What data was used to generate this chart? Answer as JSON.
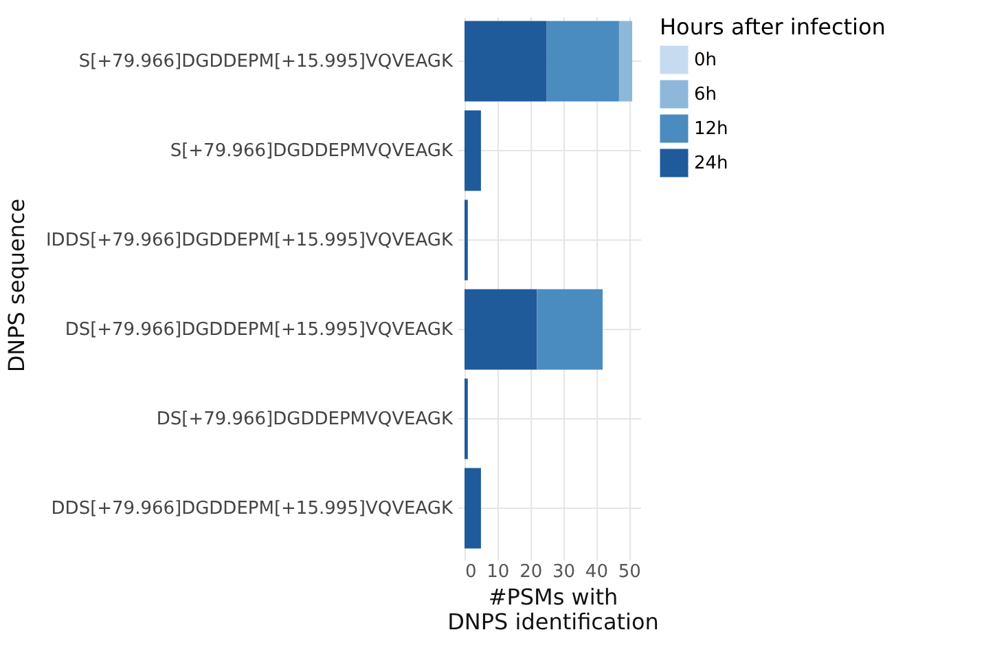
{
  "chart_data": {
    "type": "bar",
    "orientation": "horizontal",
    "stacked": true,
    "xlabel": "#PSMs with\nDNPS identification",
    "ylabel": "DNPS sequence",
    "legend_title": "Hours after infection",
    "categories": [
      "S[+79.966]DGDDEPM[+15.995]VQVEAGK",
      "S[+79.966]DGDDEPMVQVEAGK",
      "IDDS[+79.966]DGDDEPM[+15.995]VQVEAGK",
      "DS[+79.966]DGDDEPM[+15.995]VQVEAGK",
      "DS[+79.966]DGDDEPMVQVEAGK",
      "DDS[+79.966]DGDDEPM[+15.995]VQVEAGK"
    ],
    "series": [
      {
        "name": "24h",
        "color": "#1f5a9b",
        "values": [
          25,
          5,
          1,
          22,
          1,
          5
        ]
      },
      {
        "name": "12h",
        "color": "#4a8bc0",
        "values": [
          22,
          0,
          0,
          20,
          0,
          0
        ]
      },
      {
        "name": "6h",
        "color": "#8db8da",
        "values": [
          4,
          0,
          0,
          0,
          0,
          0
        ]
      },
      {
        "name": "0h",
        "color": "#c6dbef",
        "values": [
          0,
          0,
          0,
          0,
          0,
          0
        ]
      }
    ],
    "xlim": [
      0,
      53.5
    ],
    "xticks": [
      0,
      10,
      20,
      30,
      40,
      50
    ],
    "grid": true,
    "legend": "right"
  }
}
